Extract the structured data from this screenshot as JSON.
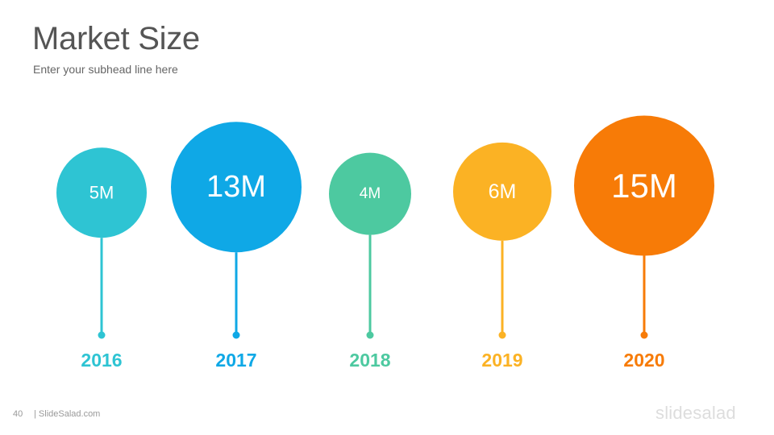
{
  "title": "Market Size",
  "subtitle": "Enter your subhead line here",
  "footer": {
    "page_number": "40",
    "site": "| SlideSalad.com",
    "logo_text": "slidesalad"
  },
  "chart_data": {
    "type": "bubble-timeline",
    "categories": [
      "2016",
      "2017",
      "2018",
      "2019",
      "2020"
    ],
    "values": [
      5,
      13,
      4,
      6,
      15
    ],
    "value_labels": [
      "5M",
      "13M",
      "4M",
      "6M",
      "15M"
    ],
    "colors": [
      "#2ec4d3",
      "#0fa8e6",
      "#4dc9a0",
      "#fbb224",
      "#f77b07"
    ]
  }
}
